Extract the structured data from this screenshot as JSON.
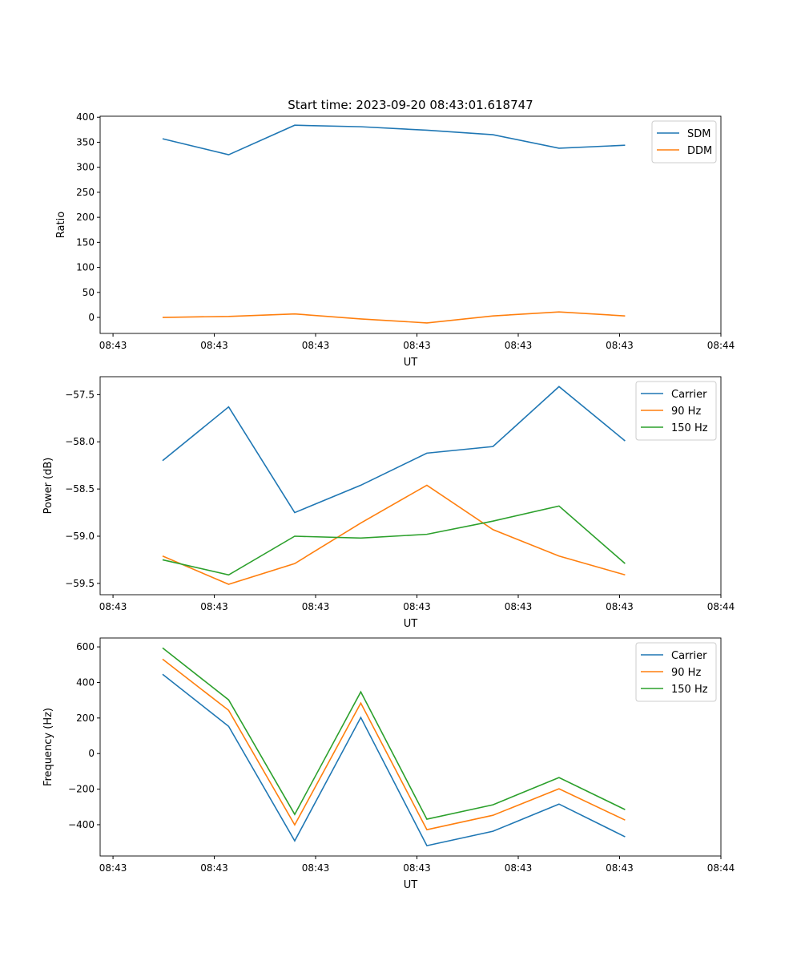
{
  "chart_data": [
    {
      "type": "line",
      "title": "Start time: 2023-09-20 08:43:01.618747",
      "xlabel": "UT",
      "ylabel": "Ratio",
      "x": [
        0,
        1,
        2,
        3,
        4,
        5,
        6,
        7
      ],
      "xlim": [
        -0.945,
        8.45
      ],
      "xticks": [
        -0.75,
        0.783,
        2.316,
        3.85,
        5.383,
        6.916,
        8.45
      ],
      "xtick_labels": [
        "08:43",
        "08:43",
        "08:43",
        "08:43",
        "08:43",
        "08:43",
        "08:44"
      ],
      "ylim": [
        -32,
        402
      ],
      "yticks": [
        0,
        50,
        100,
        150,
        200,
        250,
        300,
        350,
        400
      ],
      "ytick_labels": [
        "0",
        "50",
        "100",
        "150",
        "200",
        "250",
        "300",
        "350",
        "400"
      ],
      "legend": "top-right",
      "series": [
        {
          "name": "SDM",
          "color": "#1f77b4",
          "values": [
            357,
            325,
            384,
            381,
            374,
            365,
            338,
            344
          ]
        },
        {
          "name": "DDM",
          "color": "#ff7f0e",
          "values": [
            0,
            2,
            7,
            -3,
            -11,
            3,
            11,
            3
          ]
        }
      ]
    },
    {
      "type": "line",
      "xlabel": "UT",
      "ylabel": "Power (dB)",
      "x": [
        0,
        1,
        2,
        3,
        4,
        5,
        6,
        7
      ],
      "xlim": [
        -0.945,
        8.45
      ],
      "xticks": [
        -0.75,
        0.783,
        2.316,
        3.85,
        5.383,
        6.916,
        8.45
      ],
      "xtick_labels": [
        "08:43",
        "08:43",
        "08:43",
        "08:43",
        "08:43",
        "08:43",
        "08:44"
      ],
      "ylim": [
        -59.62,
        -57.31
      ],
      "yticks": [
        -59.5,
        -59.0,
        -58.5,
        -58.0,
        -57.5
      ],
      "ytick_labels": [
        "−59.5",
        "−59.0",
        "−58.5",
        "−58.0",
        "−57.5"
      ],
      "legend": "top-right",
      "series": [
        {
          "name": "Carrier",
          "color": "#1f77b4",
          "values": [
            -58.2,
            -57.63,
            -58.75,
            -58.46,
            -58.12,
            -58.05,
            -57.415,
            -57.99
          ]
        },
        {
          "name": "90 Hz",
          "color": "#ff7f0e",
          "values": [
            -59.21,
            -59.51,
            -59.29,
            -58.86,
            -58.46,
            -58.93,
            -59.21,
            -59.41
          ]
        },
        {
          "name": "150 Hz",
          "color": "#2ca02c",
          "values": [
            -59.25,
            -59.41,
            -59.0,
            -59.02,
            -58.98,
            -58.84,
            -58.68,
            -59.29
          ]
        }
      ]
    },
    {
      "type": "line",
      "xlabel": "UT",
      "ylabel": "Frequency (Hz)",
      "x": [
        0,
        1,
        2,
        3,
        4,
        5,
        6,
        7
      ],
      "xlim": [
        -0.945,
        8.45
      ],
      "xticks": [
        -0.75,
        0.783,
        2.316,
        3.85,
        5.383,
        6.916,
        8.45
      ],
      "xtick_labels": [
        "08:43",
        "08:43",
        "08:43",
        "08:43",
        "08:43",
        "08:43",
        "08:44"
      ],
      "ylim": [
        -576,
        650
      ],
      "yticks": [
        -400,
        -200,
        0,
        200,
        400,
        600
      ],
      "ytick_labels": [
        "−400",
        "−200",
        "0",
        "200",
        "400",
        "600"
      ],
      "legend": "top-right",
      "series": [
        {
          "name": "Carrier",
          "color": "#1f77b4",
          "values": [
            446,
            153,
            -491,
            203,
            -518,
            -437,
            -284,
            -468
          ]
        },
        {
          "name": "90 Hz",
          "color": "#ff7f0e",
          "values": [
            531,
            243,
            -401,
            284,
            -428,
            -347,
            -198,
            -374
          ]
        },
        {
          "name": "150 Hz",
          "color": "#2ca02c",
          "values": [
            594,
            302,
            -342,
            347,
            -369,
            -288,
            -135,
            -315
          ]
        }
      ]
    }
  ]
}
